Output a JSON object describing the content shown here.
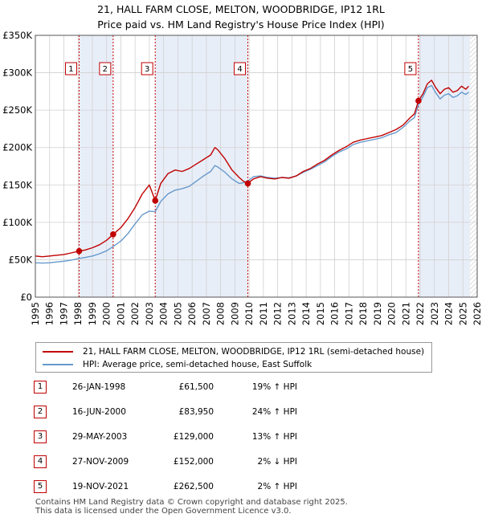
{
  "title_line1": "21, HALL FARM CLOSE, MELTON, WOODBRIDGE, IP12 1RL",
  "title_line2": "Price paid vs. HM Land Registry's House Price Index (HPI)",
  "colors": {
    "property": "#c00000",
    "hpi": "#6699cc",
    "shade": "#e8eef8",
    "vline": "#cc0000",
    "grid": "#d0d0d0"
  },
  "legend": {
    "property": "21, HALL FARM CLOSE, MELTON, WOODBRIDGE, IP12 1RL (semi-detached house)",
    "hpi": "HPI: Average price, semi-detached house, East Suffolk"
  },
  "sales": [
    {
      "num": "1",
      "date": "26-JAN-1998",
      "price": "£61,500",
      "hpi": "19% ↑ HPI"
    },
    {
      "num": "2",
      "date": "16-JUN-2000",
      "price": "£83,950",
      "hpi": "24% ↑ HPI"
    },
    {
      "num": "3",
      "date": "29-MAY-2003",
      "price": "£129,000",
      "hpi": "13% ↑ HPI"
    },
    {
      "num": "4",
      "date": "27-NOV-2009",
      "price": "£152,000",
      "hpi": "2% ↓ HPI"
    },
    {
      "num": "5",
      "date": "19-NOV-2021",
      "price": "£262,500",
      "hpi": "2% ↑ HPI"
    }
  ],
  "footer_line1": "Contains HM Land Registry data © Crown copyright and database right 2025.",
  "footer_line2": "This data is licensed under the Open Government Licence v3.0.",
  "chart_data": {
    "type": "line",
    "title": "21, HALL FARM CLOSE, MELTON, WOODBRIDGE, IP12 1RL — Price paid vs. HM Land Registry's House Price Index (HPI)",
    "xlim": [
      1995,
      2026
    ],
    "ylim": [
      0,
      350000
    ],
    "y_ticks": [
      0,
      50000,
      100000,
      150000,
      200000,
      250000,
      300000,
      350000
    ],
    "y_tick_labels": [
      "£0",
      "£50K",
      "£100K",
      "£150K",
      "£200K",
      "£250K",
      "£300K",
      "£350K"
    ],
    "x_ticks": [
      1995,
      1996,
      1997,
      1998,
      1999,
      2000,
      2001,
      2002,
      2003,
      2004,
      2005,
      2006,
      2007,
      2008,
      2009,
      2010,
      2011,
      2012,
      2013,
      2014,
      2015,
      2016,
      2017,
      2018,
      2019,
      2020,
      2021,
      2022,
      2023,
      2024,
      2025,
      2026
    ],
    "grid": true,
    "shaded_periods": [
      [
        1998.07,
        2000.46
      ],
      [
        2003.41,
        2009.91
      ],
      [
        2021.88,
        2025.5
      ]
    ],
    "hatched_region": [
      2025.5,
      2026
    ],
    "sale_points": [
      {
        "label": "1",
        "x": 1998.07,
        "y": 61500
      },
      {
        "label": "2",
        "x": 2000.46,
        "y": 83950
      },
      {
        "label": "3",
        "x": 2003.41,
        "y": 129000
      },
      {
        "label": "4",
        "x": 2009.91,
        "y": 152000
      },
      {
        "label": "5",
        "x": 2021.88,
        "y": 262500
      }
    ],
    "series": [
      {
        "name": "21, HALL FARM CLOSE, MELTON, WOODBRIDGE, IP12 1RL (semi-detached house)",
        "color": "#c00000",
        "x": [
          1995,
          1995.5,
          1996,
          1996.5,
          1997,
          1997.5,
          1998.07,
          1998.5,
          1999,
          1999.5,
          2000,
          2000.46,
          2001,
          2001.5,
          2002,
          2002.5,
          2003,
          2003.41,
          2003.8,
          2004.3,
          2004.8,
          2005.3,
          2005.8,
          2006.3,
          2006.8,
          2007.3,
          2007.6,
          2007.8,
          2008.3,
          2008.8,
          2009.3,
          2009.6,
          2009.91,
          2010.3,
          2010.8,
          2011.3,
          2011.8,
          2012.3,
          2012.8,
          2013.3,
          2013.8,
          2014.3,
          2014.8,
          2015.3,
          2015.8,
          2016.3,
          2016.8,
          2017.3,
          2017.8,
          2018.3,
          2018.8,
          2019.3,
          2019.8,
          2020.3,
          2020.8,
          2021.3,
          2021.6,
          2021.88,
          2022.2,
          2022.5,
          2022.8,
          2023.1,
          2023.4,
          2023.7,
          2024,
          2024.3,
          2024.6,
          2024.9,
          2025.2,
          2025.4
        ],
        "y": [
          55000,
          54000,
          55000,
          56000,
          57000,
          59000,
          61500,
          63000,
          66000,
          70000,
          76000,
          83950,
          93000,
          105000,
          120000,
          138000,
          150000,
          129000,
          152000,
          165000,
          170000,
          168000,
          172000,
          178000,
          184000,
          190000,
          200000,
          197000,
          185000,
          170000,
          160000,
          155000,
          152000,
          158000,
          161000,
          159000,
          158000,
          160000,
          159000,
          162000,
          168000,
          172000,
          178000,
          183000,
          190000,
          196000,
          201000,
          207000,
          210000,
          212000,
          214000,
          216000,
          220000,
          224000,
          230000,
          240000,
          245000,
          262500,
          272000,
          285000,
          290000,
          280000,
          272000,
          278000,
          280000,
          274000,
          276000,
          282000,
          278000,
          282000
        ]
      },
      {
        "name": "HPI: Average price, semi-detached house, East Suffolk",
        "color": "#6699cc",
        "x": [
          1995,
          1995.5,
          1996,
          1996.5,
          1997,
          1997.5,
          1998.07,
          1998.5,
          1999,
          1999.5,
          2000,
          2000.46,
          2001,
          2001.5,
          2002,
          2002.5,
          2003,
          2003.41,
          2003.8,
          2004.3,
          2004.8,
          2005.3,
          2005.8,
          2006.3,
          2006.8,
          2007.3,
          2007.6,
          2007.8,
          2008.3,
          2008.8,
          2009.3,
          2009.6,
          2009.91,
          2010.3,
          2010.8,
          2011.3,
          2011.8,
          2012.3,
          2012.8,
          2013.3,
          2013.8,
          2014.3,
          2014.8,
          2015.3,
          2015.8,
          2016.3,
          2016.8,
          2017.3,
          2017.8,
          2018.3,
          2018.8,
          2019.3,
          2019.8,
          2020.3,
          2020.8,
          2021.3,
          2021.6,
          2021.88,
          2022.2,
          2022.5,
          2022.8,
          2023.1,
          2023.4,
          2023.7,
          2024,
          2024.3,
          2024.6,
          2024.9,
          2025.2,
          2025.4
        ],
        "y": [
          46000,
          45500,
          46000,
          47000,
          48000,
          49500,
          51700,
          53000,
          55000,
          58000,
          62000,
          67700,
          75000,
          85000,
          98000,
          110000,
          115000,
          114200,
          128000,
          138000,
          143000,
          145000,
          148000,
          155000,
          162000,
          168000,
          176000,
          174000,
          167000,
          158000,
          152000,
          153000,
          155000,
          161000,
          162000,
          160000,
          159000,
          160000,
          159500,
          162000,
          167000,
          171000,
          176000,
          181000,
          188000,
          194000,
          198000,
          204000,
          207000,
          209000,
          211000,
          213000,
          217000,
          220000,
          227000,
          236000,
          240000,
          257400,
          268000,
          280000,
          283000,
          273000,
          265000,
          270000,
          272000,
          267000,
          269000,
          274000,
          271000,
          274000
        ]
      }
    ]
  }
}
